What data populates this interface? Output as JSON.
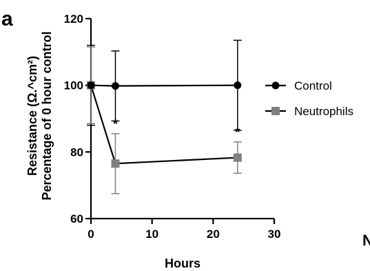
{
  "panel_label": "a",
  "cropped_text": "N",
  "chart_data": {
    "type": "line",
    "xlabel": "Hours",
    "ylabel_lines": [
      "Resistance (Ω.^cm²)",
      "Percentage of 0 hour control"
    ],
    "xlim": [
      0,
      30
    ],
    "ylim": [
      60,
      120
    ],
    "xticks": [
      0,
      10,
      20,
      30
    ],
    "yticks": [
      60,
      80,
      100,
      120
    ],
    "x_tick_labels": [
      "0",
      "10",
      "20",
      "30"
    ],
    "y_tick_labels": [
      "60",
      "80",
      "100",
      "120"
    ],
    "legend_position": "right",
    "series": [
      {
        "name": "Control",
        "marker": "circle",
        "color": "#000000",
        "x": [
          0,
          4,
          24
        ],
        "y": [
          100,
          99.8,
          100
        ],
        "err": [
          12,
          10.5,
          13.5
        ]
      },
      {
        "name": "Neutrophils",
        "marker": "square",
        "color": "#808080",
        "x": [
          0,
          4,
          24
        ],
        "y": [
          100,
          76.5,
          78.3
        ],
        "err": [
          11.5,
          9,
          4.7
        ]
      }
    ],
    "annotations": [
      {
        "text": "*",
        "x": 4,
        "y": 89
      },
      {
        "text": "*",
        "x": 24,
        "y": 86.5
      }
    ]
  }
}
